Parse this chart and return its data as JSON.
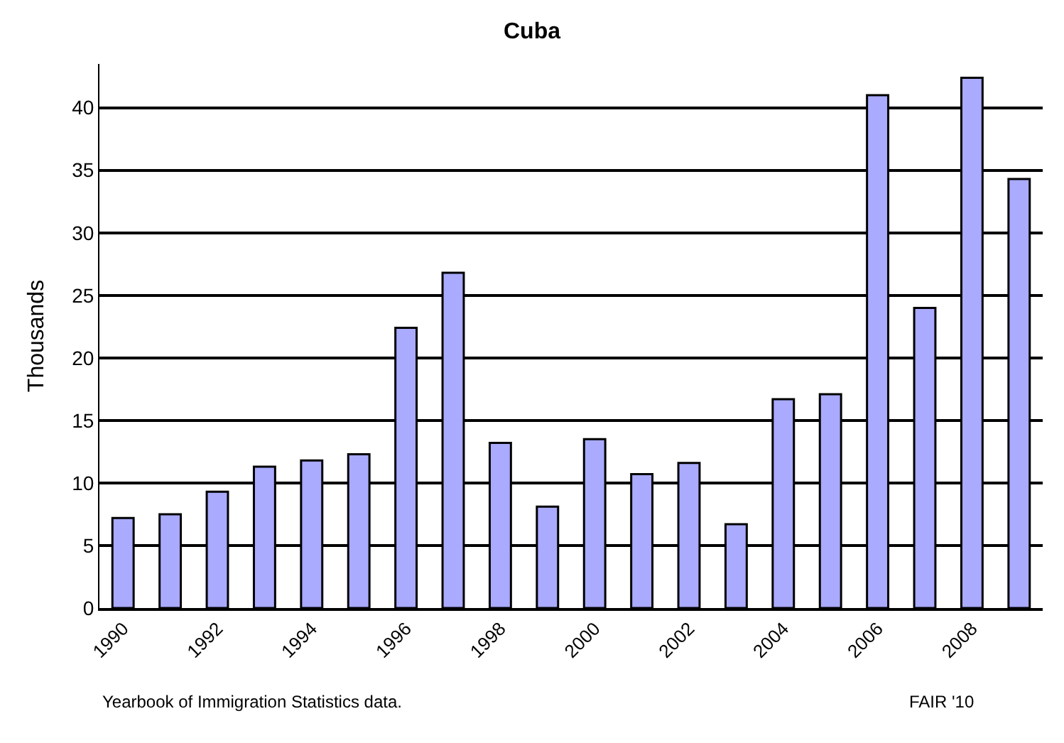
{
  "chart_data": {
    "type": "bar",
    "title": "Cuba",
    "ylabel": "Thousands",
    "categories": [
      "1990",
      null,
      "1992",
      null,
      "1994",
      null,
      "1996",
      null,
      "1998",
      null,
      "2000",
      null,
      "2002",
      null,
      "2004",
      null,
      "2006",
      null,
      "2008",
      null
    ],
    "values": [
      7.2,
      7.5,
      9.3,
      11.3,
      11.8,
      12.3,
      22.4,
      26.8,
      13.2,
      8.1,
      13.5,
      10.7,
      11.6,
      6.7,
      16.7,
      17.1,
      41,
      24,
      42.4,
      34.3
    ],
    "color": "#aaaaff",
    "ylim": [
      0,
      43.5
    ],
    "yticks": [
      0,
      5,
      10,
      15,
      20,
      25,
      30,
      35,
      40
    ],
    "grid": "y",
    "legend": false,
    "annotations": [
      "Yearbook of Immigration Statistics data.",
      "FAIR '10"
    ]
  }
}
